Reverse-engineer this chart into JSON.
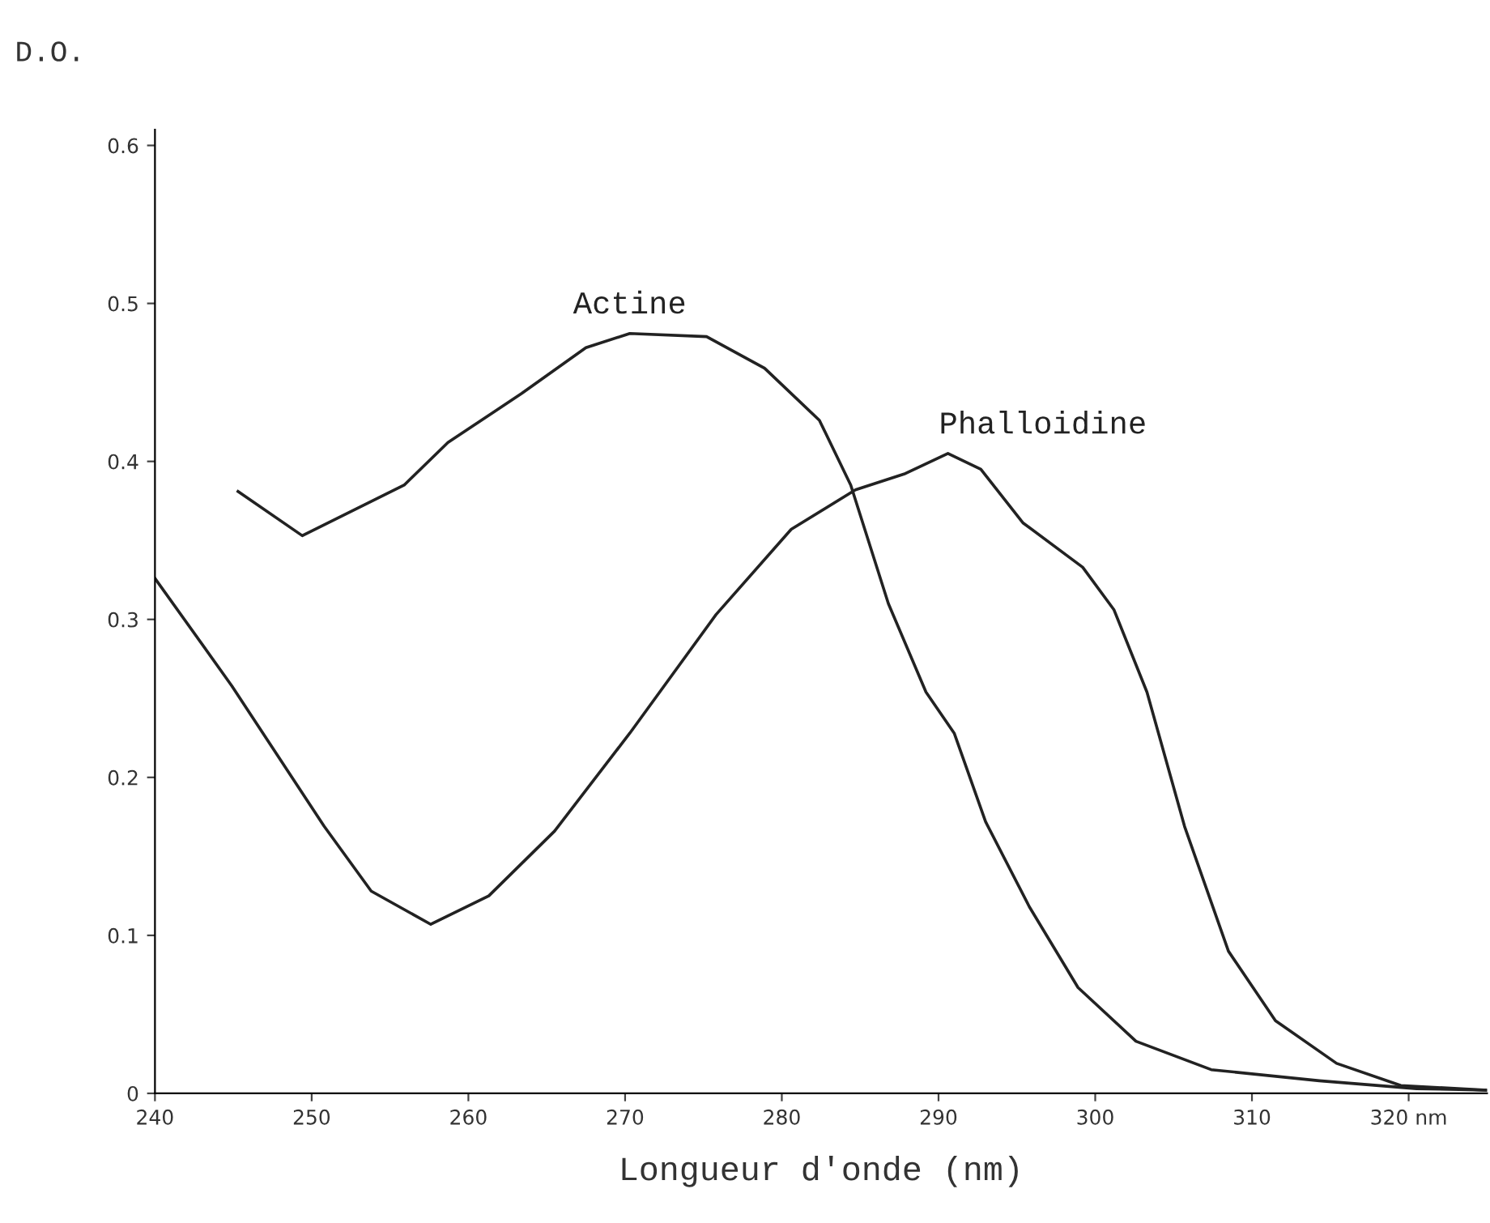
{
  "chart_data": {
    "type": "line",
    "ylabel": "D.O.",
    "xlabel": "Longueur d'onde (nm)",
    "xlim": [
      240,
      325
    ],
    "ylim": [
      0,
      0.61
    ],
    "xticks": [
      240,
      250,
      260,
      270,
      280,
      290,
      300,
      310,
      {
        "value": 320,
        "label": "320 nm"
      }
    ],
    "yticks": [
      0,
      0.1,
      0.2,
      0.3,
      0.4,
      0.5,
      0.6
    ],
    "grid": false,
    "legend": false,
    "marker": "none",
    "line_style": "solid",
    "series": [
      {
        "name": "Actine",
        "color": "#222222",
        "x": [
          245.3,
          249.4,
          255.9,
          258.7,
          263.4,
          267.5,
          270.3,
          275.2,
          278.9,
          282.4,
          284.4,
          286.8,
          289.2,
          291,
          293,
          295.8,
          298.9,
          302.6,
          307.4,
          314.3,
          320.5,
          325
        ],
        "values": [
          0.381,
          0.353,
          0.385,
          0.412,
          0.443,
          0.472,
          0.481,
          0.479,
          0.459,
          0.426,
          0.385,
          0.31,
          0.254,
          0.228,
          0.172,
          0.118,
          0.067,
          0.033,
          0.015,
          0.008,
          0.003,
          0.002
        ]
      },
      {
        "name": "Phalloidine",
        "color": "#222222",
        "x": [
          240,
          244.9,
          250.8,
          253.8,
          257.6,
          261.3,
          265.5,
          270.3,
          275.8,
          280.6,
          284.7,
          287.8,
          290.6,
          292.7,
          295.4,
          299.2,
          301.2,
          303.3,
          305.7,
          308.5,
          311.5,
          315.4,
          319.5,
          325
        ],
        "values": [
          0.326,
          0.258,
          0.169,
          0.128,
          0.107,
          0.125,
          0.166,
          0.228,
          0.303,
          0.357,
          0.382,
          0.392,
          0.405,
          0.395,
          0.361,
          0.333,
          0.306,
          0.254,
          0.169,
          0.09,
          0.046,
          0.019,
          0.005,
          0.002
        ]
      }
    ]
  }
}
